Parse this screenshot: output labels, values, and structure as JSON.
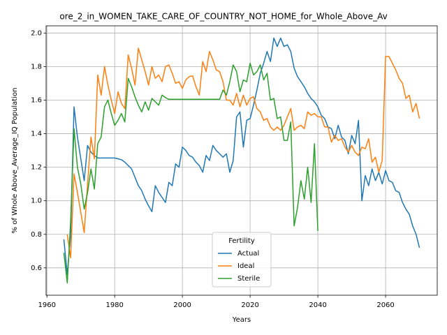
{
  "chart_data": {
    "type": "line",
    "title": "ore_2_in_WOMEN_TAKE_CARE_OF_COUNTRY_NOT_HOME_for_Whole_Above_Av",
    "xlabel": "Years",
    "ylabel": "% of Whole Above_Average_IQ Population",
    "x": [
      1965,
      1966,
      1967,
      1968,
      1969,
      1970,
      1971,
      1972,
      1973,
      1974,
      1975,
      1976,
      1977,
      1978,
      1979,
      1980,
      1981,
      1982,
      1983,
      1984,
      1985,
      1986,
      1987,
      1988,
      1989,
      1990,
      1991,
      1992,
      1993,
      1994,
      1995,
      1996,
      1997,
      1998,
      1999,
      2000,
      2001,
      2002,
      2003,
      2004,
      2005,
      2006,
      2007,
      2008,
      2009,
      2010,
      2011,
      2012,
      2013,
      2014,
      2015,
      2016,
      2017,
      2018,
      2019,
      2020,
      2021,
      2022,
      2023,
      2024,
      2025,
      2026,
      2027,
      2028,
      2029,
      2030,
      2031,
      2032,
      2033,
      2034,
      2035,
      2036,
      2037,
      2038,
      2039,
      2040,
      2041,
      2042,
      2043,
      2044,
      2045,
      2046,
      2047,
      2048,
      2049,
      2050,
      2051,
      2052,
      2053,
      2054,
      2055,
      2056,
      2057,
      2058,
      2059,
      2060,
      2061,
      2062,
      2063,
      2064,
      2065,
      2066,
      2067,
      2068,
      2069,
      2070
    ],
    "series": [
      {
        "name": "Actual",
        "color": "#1f77b4",
        "values": [
          0.77,
          0.56,
          0.8,
          1.56,
          1.38,
          1.25,
          1.12,
          1.33,
          1.29,
          1.27,
          1.255,
          1.255,
          1.255,
          1.255,
          1.255,
          1.255,
          1.25,
          1.245,
          1.23,
          1.21,
          1.19,
          1.14,
          1.09,
          1.06,
          1.01,
          0.97,
          0.935,
          1.09,
          1.05,
          1.02,
          0.99,
          1.11,
          1.09,
          1.22,
          1.2,
          1.32,
          1.3,
          1.27,
          1.26,
          1.23,
          1.21,
          1.17,
          1.27,
          1.24,
          1.33,
          1.3,
          1.28,
          1.26,
          1.28,
          1.17,
          1.24,
          1.5,
          1.53,
          1.32,
          1.48,
          1.49,
          1.57,
          1.66,
          1.76,
          1.82,
          1.89,
          1.83,
          1.97,
          1.92,
          1.97,
          1.92,
          1.93,
          1.89,
          1.79,
          1.74,
          1.71,
          1.68,
          1.64,
          1.61,
          1.59,
          1.56,
          1.51,
          1.49,
          1.44,
          1.43,
          1.37,
          1.45,
          1.38,
          1.36,
          1.28,
          1.39,
          1.34,
          1.48,
          1.0,
          1.15,
          1.09,
          1.19,
          1.12,
          1.17,
          1.1,
          1.18,
          1.12,
          1.11,
          1.06,
          1.05,
          0.99,
          0.95,
          0.92,
          0.85,
          0.8,
          0.72
        ]
      },
      {
        "name": "Ideal",
        "color": "#ff7f0e",
        "values": [
          null,
          0.8,
          0.66,
          1.16,
          1.05,
          0.93,
          0.81,
          1.1,
          1.38,
          1.25,
          1.75,
          1.63,
          1.8,
          1.69,
          1.6,
          1.52,
          1.65,
          1.58,
          1.55,
          1.87,
          1.79,
          1.69,
          1.91,
          1.84,
          1.77,
          1.69,
          1.8,
          1.73,
          1.75,
          1.71,
          1.8,
          1.81,
          1.76,
          1.7,
          1.71,
          1.67,
          1.72,
          1.74,
          1.745,
          1.68,
          1.63,
          1.83,
          1.77,
          1.89,
          1.84,
          1.78,
          1.77,
          1.71,
          1.6,
          1.6,
          1.57,
          1.64,
          1.56,
          1.63,
          1.57,
          1.61,
          1.62,
          1.55,
          1.53,
          1.48,
          1.49,
          1.44,
          1.42,
          1.44,
          1.42,
          1.45,
          1.5,
          1.55,
          1.42,
          1.44,
          1.45,
          1.43,
          1.53,
          1.51,
          1.52,
          1.5,
          1.5,
          1.44,
          1.44,
          1.35,
          1.39,
          1.36,
          1.37,
          1.32,
          1.29,
          1.33,
          1.29,
          1.27,
          1.32,
          1.31,
          1.37,
          1.23,
          1.26,
          1.17,
          1.24,
          1.86,
          1.86,
          1.82,
          1.78,
          1.73,
          1.7,
          1.61,
          1.63,
          1.53,
          1.58,
          1.49
        ]
      },
      {
        "name": "Sterile",
        "color": "#2ca02c",
        "values": [
          0.69,
          0.51,
          0.88,
          1.43,
          1.2,
          1.1,
          0.95,
          1.05,
          1.19,
          1.07,
          1.34,
          1.38,
          1.56,
          1.6,
          1.52,
          1.45,
          1.48,
          1.52,
          1.47,
          1.73,
          1.68,
          1.62,
          1.57,
          1.53,
          1.59,
          1.54,
          1.61,
          1.59,
          1.57,
          1.63,
          1.615,
          1.605,
          1.605,
          1.605,
          1.605,
          1.605,
          1.605,
          1.605,
          1.605,
          1.605,
          1.605,
          1.605,
          1.605,
          1.605,
          1.605,
          1.605,
          1.605,
          1.66,
          1.63,
          1.71,
          1.81,
          1.77,
          1.65,
          1.72,
          1.71,
          1.82,
          1.75,
          1.77,
          1.81,
          1.72,
          1.76,
          1.6,
          1.61,
          1.49,
          1.5,
          1.36,
          1.36,
          1.47,
          0.85,
          0.96,
          1.12,
          1.01,
          1.2,
          0.99,
          1.34,
          0.82,
          null,
          null,
          null,
          null,
          null,
          null,
          null,
          null,
          null,
          null,
          null,
          null,
          null,
          null,
          null,
          null,
          null,
          null,
          null,
          null,
          null,
          null,
          null,
          null,
          null,
          null,
          null,
          null,
          null,
          null
        ]
      }
    ],
    "xlim": [
      1959.75,
      2075.25
    ],
    "ylim": [
      0.437,
      2.043
    ],
    "xticks": [
      1960,
      1980,
      2000,
      2020,
      2040,
      2060
    ],
    "yticks": [
      0.6,
      0.8,
      {
        "value": 1,
        "label": "1.0"
      },
      1.2,
      1.4,
      1.6,
      1.8,
      {
        "value": 2,
        "label": "2.0"
      }
    ],
    "grid": true,
    "legend": {
      "title": "Fertility",
      "position": "lower center"
    }
  }
}
